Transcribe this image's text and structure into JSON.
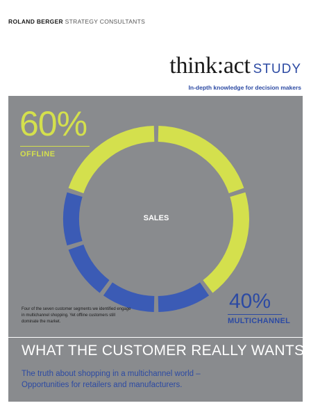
{
  "header": {
    "brand_bold": "ROLAND BERGER",
    "brand_light": "STRATEGY CONSULTANTS",
    "logo_think": "think",
    "logo_colon": ":",
    "logo_act": "act",
    "logo_study": "STUDY",
    "tagline": "In-depth knowledge for decision makers"
  },
  "cover": {
    "offline_pct": "60%",
    "offline_label": "OFFLINE",
    "center_label": "SALES",
    "multichannel_pct": "40%",
    "multichannel_label": "MULTICHANNEL",
    "note": "Four of the seven customer segments we identified engage in multichannel shopping. Yet offline customers still dominate the market.",
    "headline": "WHAT THE CUSTOMER REALLY WANTS",
    "subtitle_line1": "The truth about shopping in a multichannel world –",
    "subtitle_line2": "Opportunities for retailers and manufacturers."
  },
  "ring": {
    "offline_share": 0.6,
    "multichannel_share": 0.4,
    "offline_color": "#d4e04d",
    "multichannel_color": "#3b5bb5",
    "segment_count": 7
  },
  "colors": {
    "panel": "#898b8e",
    "accent_blue": "#2c4aa3",
    "accent_green": "#d4e04d"
  }
}
